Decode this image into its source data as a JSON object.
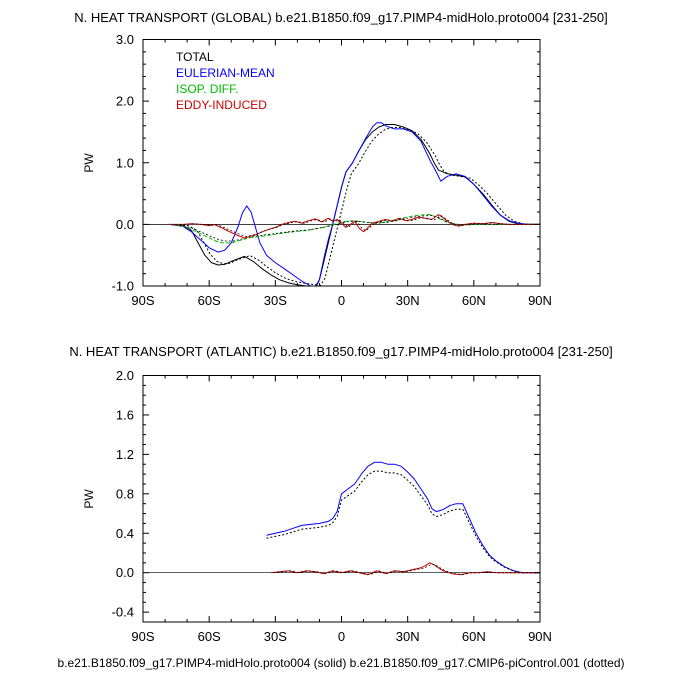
{
  "footer": "b.e21.B1850.f09_g17.PIMP4-midHolo.proto004 (solid) b.e21.B1850.f09_g17.CMIP6-piControl.001 (dotted)",
  "colors": {
    "total": "#000000",
    "eulerian": "#0000ff",
    "isop": "#00bb00",
    "eddy": "#cc0000"
  },
  "chart_data": [
    {
      "type": "line",
      "title": "N. HEAT TRANSPORT (GLOBAL) b.e21.B1850.f09_g17.PIMP4-midHolo.proto004 [231-250]",
      "xlabel": "",
      "ylabel": "PW",
      "xlim": [
        -90,
        90
      ],
      "ylim": [
        -1.0,
        3.0
      ],
      "xticks": [
        -90,
        -60,
        -30,
        0,
        30,
        60,
        90
      ],
      "xtick_labels": [
        "90S",
        "60S",
        "30S",
        "0",
        "30N",
        "60N",
        "90N"
      ],
      "yticks": [
        -1.0,
        0.0,
        1.0,
        2.0,
        3.0
      ],
      "ytick_labels": [
        "-1.0",
        "0.0",
        "1.0",
        "2.0",
        "3.0"
      ],
      "legend": [
        "TOTAL",
        "EULERIAN-MEAN",
        "ISOP. DIFF.",
        "EDDY-INDUCED"
      ],
      "series": [
        {
          "name": "TOTAL",
          "color": "#000000",
          "dash": "solid",
          "x": [
            -78,
            -72,
            -68,
            -65,
            -62,
            -59,
            -56,
            -53,
            -50,
            -47,
            -44,
            -40,
            -36,
            -32,
            -28,
            -24,
            -20,
            -16,
            -12,
            -10,
            -8,
            -6,
            -4,
            -2,
            0,
            2,
            5,
            8,
            11,
            14,
            17,
            20,
            24,
            28,
            32,
            36,
            40,
            42,
            44,
            48,
            52,
            56,
            60,
            64,
            68,
            72,
            76,
            80,
            84,
            90
          ],
          "y": [
            0.0,
            -0.02,
            -0.1,
            -0.3,
            -0.5,
            -0.62,
            -0.66,
            -0.65,
            -0.6,
            -0.56,
            -0.52,
            -0.6,
            -0.72,
            -0.82,
            -0.9,
            -0.95,
            -0.98,
            -1.0,
            -1.02,
            -0.9,
            -0.6,
            -0.3,
            0.0,
            0.3,
            0.6,
            0.85,
            1.0,
            1.2,
            1.38,
            1.5,
            1.58,
            1.62,
            1.62,
            1.58,
            1.52,
            1.38,
            1.15,
            1.0,
            0.88,
            0.82,
            0.8,
            0.77,
            0.65,
            0.5,
            0.32,
            0.15,
            0.05,
            0.01,
            0.0,
            0.0
          ]
        },
        {
          "name": "EULERIAN-MEAN",
          "color": "#0000ff",
          "dash": "solid",
          "x": [
            -78,
            -72,
            -68,
            -64,
            -60,
            -56,
            -53,
            -50,
            -47,
            -45,
            -43,
            -41,
            -39,
            -37,
            -34,
            -30,
            -26,
            -22,
            -18,
            -14,
            -12,
            -10,
            -8,
            -6,
            -4,
            -2,
            0,
            2,
            5,
            8,
            11,
            14,
            16,
            18,
            20,
            24,
            28,
            32,
            36,
            40,
            43,
            45,
            48,
            52,
            56,
            60,
            64,
            68,
            72,
            76,
            80,
            84,
            90
          ],
          "y": [
            0.0,
            -0.03,
            -0.12,
            -0.25,
            -0.38,
            -0.45,
            -0.42,
            -0.3,
            -0.05,
            0.18,
            0.3,
            0.2,
            -0.05,
            -0.3,
            -0.5,
            -0.62,
            -0.72,
            -0.82,
            -0.92,
            -1.0,
            -1.05,
            -0.9,
            -0.55,
            -0.25,
            0.0,
            0.3,
            0.6,
            0.85,
            1.0,
            1.2,
            1.4,
            1.58,
            1.65,
            1.65,
            1.6,
            1.55,
            1.55,
            1.5,
            1.35,
            1.05,
            0.85,
            0.7,
            0.78,
            0.82,
            0.78,
            0.65,
            0.48,
            0.3,
            0.15,
            0.06,
            0.02,
            0.0,
            0.0
          ]
        },
        {
          "name": "ISOP. DIFF.",
          "color": "#00bb00",
          "dash": "dashed",
          "x": [
            -78,
            -72,
            -68,
            -64,
            -60,
            -57,
            -54,
            -50,
            -46,
            -42,
            -38,
            -34,
            -28,
            -22,
            -16,
            -10,
            -5,
            0,
            5,
            10,
            15,
            20,
            25,
            30,
            35,
            40,
            43,
            45,
            48,
            52,
            56,
            60,
            65,
            70,
            75,
            80,
            85,
            90
          ],
          "y": [
            0.0,
            -0.03,
            -0.08,
            -0.15,
            -0.22,
            -0.27,
            -0.3,
            -0.3,
            -0.26,
            -0.22,
            -0.2,
            -0.18,
            -0.15,
            -0.12,
            -0.1,
            -0.06,
            -0.02,
            0.04,
            0.06,
            0.04,
            0.02,
            0.04,
            0.08,
            0.12,
            0.15,
            0.16,
            0.12,
            0.08,
            0.03,
            0.0,
            -0.01,
            0.0,
            0.0,
            0.0,
            0.0,
            0.0,
            0.0,
            0.0
          ]
        },
        {
          "name": "EDDY-INDUCED",
          "color": "#cc0000",
          "dash": "solid",
          "x": [
            -78,
            -72,
            -68,
            -64,
            -60,
            -58,
            -56,
            -54,
            -52,
            -50,
            -47,
            -44,
            -42,
            -39,
            -36,
            -33,
            -30,
            -27,
            -24,
            -21,
            -18,
            -15,
            -12,
            -9,
            -6,
            -4,
            -2,
            0,
            2,
            4,
            6,
            8,
            10,
            12,
            14,
            17,
            20,
            23,
            26,
            29,
            32,
            35,
            38,
            41,
            44,
            47,
            50,
            53,
            56,
            60,
            64,
            68,
            72,
            76,
            80,
            85,
            90
          ],
          "y": [
            0.0,
            0.0,
            0.01,
            0.0,
            -0.02,
            0.0,
            -0.03,
            -0.06,
            -0.1,
            -0.13,
            -0.18,
            -0.22,
            -0.2,
            -0.17,
            -0.12,
            -0.08,
            -0.05,
            0.0,
            0.03,
            0.05,
            0.02,
            0.06,
            0.09,
            0.04,
            0.1,
            0.05,
            0.08,
            0.02,
            -0.05,
            0.0,
            0.05,
            -0.06,
            -0.12,
            -0.05,
            0.02,
            0.05,
            0.08,
            0.05,
            0.1,
            0.06,
            0.08,
            0.12,
            0.1,
            0.08,
            0.16,
            0.08,
            0.0,
            -0.03,
            0.0,
            0.02,
            0.01,
            0.03,
            0.01,
            0.0,
            0.0,
            0.0,
            0.0
          ]
        }
      ]
    },
    {
      "type": "line",
      "title": "N. HEAT TRANSPORT (ATLANTIC) b.e21.B1850.f09_g17.PIMP4-midHolo.proto004 [231-250]",
      "xlabel": "",
      "ylabel": "PW",
      "xlim": [
        -90,
        90
      ],
      "ylim": [
        -0.5,
        2.0
      ],
      "xticks": [
        -90,
        -60,
        -30,
        0,
        30,
        60,
        90
      ],
      "xtick_labels": [
        "90S",
        "60S",
        "30S",
        "0",
        "30N",
        "60N",
        "90N"
      ],
      "yticks": [
        -0.4,
        0.0,
        0.4,
        0.8,
        1.2,
        1.6,
        2.0
      ],
      "ytick_labels": [
        "-0.4",
        "0.0",
        "0.4",
        "0.8",
        "1.2",
        "1.6",
        "2.0"
      ],
      "series": [
        {
          "name": "EULERIAN-MEAN",
          "color": "#0000ff",
          "dash": "solid",
          "x": [
            -34,
            -30,
            -26,
            -22,
            -18,
            -14,
            -10,
            -6,
            -4,
            -2,
            0,
            3,
            6,
            9,
            12,
            15,
            18,
            21,
            24,
            27,
            30,
            33,
            36,
            39,
            41,
            43,
            46,
            49,
            52,
            55,
            58,
            61,
            64,
            67,
            70,
            74,
            78,
            82,
            86,
            90
          ],
          "y": [
            0.38,
            0.4,
            0.42,
            0.45,
            0.48,
            0.49,
            0.5,
            0.52,
            0.55,
            0.62,
            0.8,
            0.85,
            0.9,
            1.0,
            1.08,
            1.12,
            1.12,
            1.1,
            1.1,
            1.08,
            1.02,
            0.95,
            0.85,
            0.75,
            0.65,
            0.62,
            0.64,
            0.68,
            0.7,
            0.7,
            0.55,
            0.4,
            0.28,
            0.18,
            0.12,
            0.06,
            0.02,
            0.0,
            0.0,
            0.0
          ]
        },
        {
          "name": "EDDY-INDUCED",
          "color": "#cc0000",
          "dash": "solid",
          "x": [
            -32,
            -28,
            -24,
            -20,
            -16,
            -12,
            -8,
            -4,
            0,
            4,
            8,
            12,
            16,
            20,
            24,
            28,
            32,
            36,
            38,
            40,
            42,
            44,
            46,
            50,
            54,
            58,
            62,
            66,
            70,
            75,
            80,
            85,
            90
          ],
          "y": [
            0.0,
            0.01,
            0.02,
            0.0,
            0.02,
            0.01,
            -0.01,
            0.02,
            0.0,
            0.02,
            0.0,
            -0.02,
            0.02,
            -0.01,
            0.02,
            0.01,
            0.03,
            0.05,
            0.07,
            0.1,
            0.08,
            0.05,
            0.02,
            -0.01,
            -0.02,
            0.0,
            0.0,
            0.01,
            0.0,
            0.0,
            0.0,
            0.0,
            0.0
          ]
        }
      ]
    }
  ]
}
